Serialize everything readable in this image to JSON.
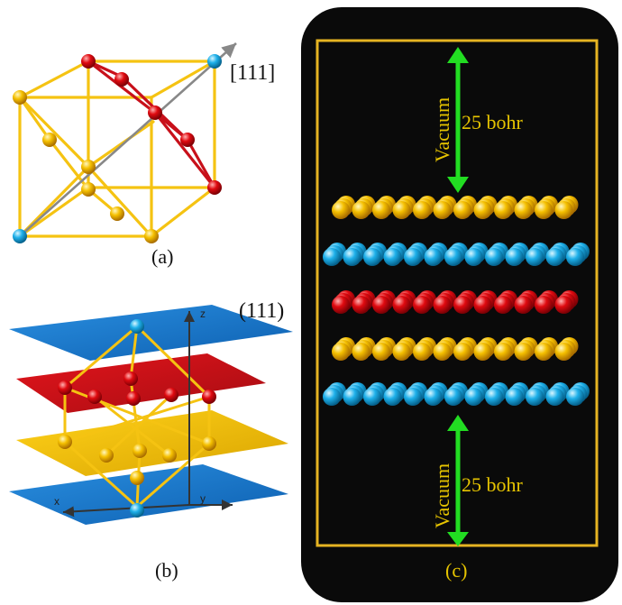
{
  "panel_a": {
    "caption": "(a)",
    "direction_label": "[111]"
  },
  "panel_b": {
    "caption": "(b)",
    "plane_label": "(111)",
    "axes": {
      "z": "z",
      "x": "x",
      "y": "y"
    }
  },
  "panel_c": {
    "caption": "(c)",
    "vacuum_top": {
      "word": "Vacuum",
      "size": "25 bohr"
    },
    "vacuum_bottom": {
      "word": "Vacuum",
      "size": "25 bohr"
    },
    "layer_colors": [
      "yellow",
      "blue",
      "red",
      "yellow",
      "blue"
    ]
  },
  "colors": {
    "yellow": "#f2b705",
    "red": "#e30613",
    "blue": "#1ba7e0",
    "bond_yellow": "#f5c312",
    "bond_red": "#c8101a",
    "frame_gold": "#e6b422",
    "vacuum_arrow": "#22dd22",
    "panel_bg": "#0a0a0a",
    "axis_gray": "#777777"
  }
}
